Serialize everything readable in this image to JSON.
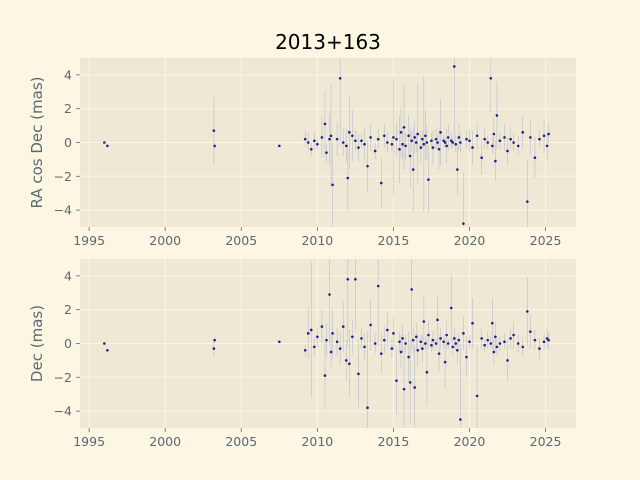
{
  "chart_data": [
    {
      "type": "scatter",
      "title": "2013+163",
      "xlabel": "",
      "ylabel": "RA cos Dec (mas)",
      "xlim": [
        1994.4,
        2027.0
      ],
      "ylim": [
        -5.0,
        5.0
      ],
      "xticks": [
        1995,
        2000,
        2005,
        2010,
        2015,
        2020,
        2025
      ],
      "yticks": [
        -4,
        -2,
        0,
        2,
        4
      ],
      "grid": true,
      "series": [
        {
          "x": [
            1996.0,
            1996.2,
            2003.2,
            2003.25,
            2007.5,
            2009.2,
            2009.4,
            2009.6,
            2009.8,
            2010.0,
            2010.3,
            2010.5,
            2010.6,
            2010.8,
            2010.9,
            2011.0,
            2011.3,
            2011.5,
            2011.7,
            2011.9,
            2012.0,
            2012.1,
            2012.3,
            2012.5,
            2012.7,
            2012.9,
            2013.1,
            2013.3,
            2013.5,
            2013.8,
            2014.0,
            2014.2,
            2014.4,
            2014.6,
            2014.9,
            2015.0,
            2015.2,
            2015.4,
            2015.5,
            2015.6,
            2015.7,
            2015.8,
            2016.0,
            2016.1,
            2016.2,
            2016.3,
            2016.4,
            2016.5,
            2016.6,
            2016.8,
            2016.9,
            2017.0,
            2017.1,
            2017.2,
            2017.3,
            2017.5,
            2017.6,
            2017.8,
            2017.9,
            2018.0,
            2018.1,
            2018.3,
            2018.4,
            2018.5,
            2018.6,
            2018.8,
            2018.9,
            2019.0,
            2019.1,
            2019.2,
            2019.3,
            2019.4,
            2019.6,
            2019.8,
            2020.0,
            2020.2,
            2020.5,
            2020.8,
            2021.0,
            2021.2,
            2021.4,
            2021.5,
            2021.6,
            2021.7,
            2021.8,
            2022.0,
            2022.3,
            2022.5,
            2022.7,
            2022.9,
            2023.2,
            2023.5,
            2023.8,
            2024.0,
            2024.3,
            2024.6,
            2024.9,
            2025.1,
            2025.2
          ],
          "y": [
            0.0,
            -0.2,
            0.7,
            -0.2,
            -0.2,
            0.2,
            0.0,
            -0.4,
            0.1,
            -0.1,
            0.3,
            1.1,
            -0.6,
            0.2,
            0.4,
            -2.5,
            0.2,
            3.8,
            0.0,
            -0.2,
            -2.1,
            0.6,
            0.4,
            0.1,
            -0.3,
            0.1,
            -0.1,
            -1.4,
            0.3,
            -0.5,
            0.2,
            -2.4,
            0.4,
            0.0,
            -0.1,
            0.3,
            0.2,
            -0.4,
            0.6,
            -0.1,
            0.9,
            -0.2,
            0.4,
            -0.8,
            0.1,
            -1.6,
            0.3,
            0.0,
            0.5,
            -0.3,
            0.2,
            -0.1,
            0.4,
            0.0,
            -2.2,
            0.1,
            -0.3,
            0.2,
            0.0,
            -0.4,
            0.6,
            0.1,
            0.0,
            -0.2,
            0.3,
            0.1,
            0.0,
            4.5,
            -0.1,
            -1.6,
            0.3,
            0.0,
            -4.8,
            0.2,
            0.1,
            -0.3,
            0.4,
            -0.9,
            0.2,
            0.0,
            3.8,
            -0.2,
            0.5,
            -1.1,
            1.6,
            0.1,
            0.3,
            -0.5,
            0.2,
            0.0,
            -0.2,
            0.6,
            -3.5,
            0.3,
            -0.9,
            0.2,
            0.4,
            -0.2,
            0.5
          ],
          "yerr": [
            0.0,
            0.0,
            2.0,
            0.2,
            0.0,
            0.5,
            0.6,
            0.4,
            0.5,
            0.3,
            1.2,
            2.0,
            0.6,
            1.5,
            3.0,
            2.5,
            1.0,
            4.0,
            0.8,
            1.0,
            2.0,
            2.2,
            1.5,
            0.6,
            0.8,
            0.4,
            1.0,
            1.5,
            0.8,
            0.5,
            0.6,
            1.5,
            0.7,
            0.6,
            0.4,
            3.5,
            1.0,
            2.0,
            1.5,
            1.0,
            2.5,
            0.8,
            1.2,
            1.8,
            0.6,
            2.5,
            1.0,
            0.6,
            3.0,
            1.0,
            0.5,
            4.0,
            1.5,
            1.0,
            2.0,
            0.5,
            1.0,
            0.6,
            0.4,
            1.2,
            2.0,
            0.4,
            0.3,
            1.0,
            0.8,
            0.5,
            0.3,
            4.5,
            0.5,
            1.5,
            0.8,
            0.6,
            3.0,
            0.5,
            0.7,
            1.0,
            0.8,
            1.0,
            0.6,
            0.4,
            2.0,
            0.5,
            1.0,
            1.2,
            2.0,
            0.5,
            0.8,
            0.8,
            0.6,
            0.5,
            0.6,
            1.0,
            2.5,
            1.0,
            1.2,
            0.5,
            1.0,
            0.8,
            0.6
          ]
        }
      ]
    },
    {
      "type": "scatter",
      "xlabel": "",
      "ylabel": "Dec (mas)",
      "xlim": [
        1994.4,
        2027.0
      ],
      "ylim": [
        -5.0,
        5.0
      ],
      "xticks": [
        1995,
        2000,
        2005,
        2010,
        2015,
        2020,
        2025
      ],
      "yticks": [
        -4,
        -2,
        0,
        2,
        4
      ],
      "grid": true,
      "series": [
        {
          "x": [
            1996.0,
            1996.2,
            2003.2,
            2003.25,
            2007.5,
            2009.2,
            2009.4,
            2009.6,
            2009.8,
            2010.0,
            2010.3,
            2010.5,
            2010.6,
            2010.8,
            2010.9,
            2011.0,
            2011.3,
            2011.5,
            2011.7,
            2011.9,
            2012.0,
            2012.1,
            2012.3,
            2012.5,
            2012.7,
            2012.9,
            2013.1,
            2013.3,
            2013.5,
            2013.8,
            2014.0,
            2014.2,
            2014.4,
            2014.6,
            2014.9,
            2015.0,
            2015.2,
            2015.4,
            2015.5,
            2015.6,
            2015.7,
            2015.8,
            2016.0,
            2016.1,
            2016.2,
            2016.3,
            2016.4,
            2016.5,
            2016.6,
            2016.8,
            2016.9,
            2017.0,
            2017.1,
            2017.2,
            2017.3,
            2017.5,
            2017.6,
            2017.8,
            2017.9,
            2018.0,
            2018.1,
            2018.3,
            2018.4,
            2018.5,
            2018.6,
            2018.8,
            2018.9,
            2019.0,
            2019.1,
            2019.2,
            2019.3,
            2019.4,
            2019.6,
            2019.8,
            2020.0,
            2020.2,
            2020.5,
            2020.8,
            2021.0,
            2021.2,
            2021.4,
            2021.5,
            2021.6,
            2021.7,
            2021.8,
            2022.0,
            2022.3,
            2022.5,
            2022.7,
            2022.9,
            2023.2,
            2023.5,
            2023.8,
            2024.0,
            2024.3,
            2024.6,
            2024.9,
            2025.1,
            2025.2
          ],
          "y": [
            0.0,
            -0.4,
            -0.3,
            0.2,
            0.1,
            -0.4,
            0.6,
            0.8,
            -0.2,
            0.4,
            1.0,
            -1.9,
            0.2,
            2.9,
            -0.5,
            0.6,
            0.1,
            -0.3,
            1.0,
            -1.0,
            3.8,
            -1.2,
            0.4,
            3.8,
            -1.8,
            0.3,
            -0.2,
            -3.8,
            1.1,
            0.0,
            3.4,
            -0.6,
            0.2,
            0.8,
            -0.3,
            0.6,
            -2.2,
            0.1,
            -0.5,
            0.3,
            -2.7,
            0.0,
            -0.8,
            -2.3,
            3.2,
            0.2,
            -2.6,
            0.4,
            -0.4,
            0.1,
            -0.3,
            1.3,
            0.0,
            -1.7,
            0.5,
            -0.1,
            0.2,
            0.0,
            1.4,
            -0.6,
            0.3,
            0.1,
            -1.1,
            0.5,
            0.0,
            2.1,
            -0.2,
            0.3,
            0.0,
            -0.4,
            0.2,
            -4.5,
            0.6,
            -0.8,
            0.1,
            1.2,
            -3.1,
            0.3,
            -0.1,
            0.2,
            0.0,
            1.2,
            -0.5,
            0.4,
            -0.2,
            0.0,
            0.1,
            -1.0,
            0.3,
            0.5,
            0.0,
            -0.2,
            1.9,
            0.7,
            0.2,
            -0.3,
            0.1,
            0.3,
            0.2
          ],
          "yerr": [
            0.0,
            0.0,
            0.5,
            0.2,
            0.0,
            0.4,
            1.5,
            4.0,
            0.5,
            0.6,
            1.0,
            2.0,
            1.0,
            3.0,
            1.0,
            1.5,
            0.8,
            1.0,
            1.5,
            1.2,
            4.0,
            2.0,
            1.0,
            3.0,
            2.0,
            0.6,
            0.8,
            4.5,
            1.5,
            0.6,
            3.5,
            1.2,
            0.8,
            1.0,
            0.6,
            1.0,
            2.0,
            0.6,
            1.0,
            0.8,
            2.5,
            0.5,
            1.5,
            2.5,
            3.5,
            0.8,
            2.5,
            0.8,
            1.0,
            0.4,
            0.8,
            1.5,
            0.4,
            2.0,
            0.8,
            0.4,
            0.6,
            0.3,
            1.5,
            1.0,
            0.6,
            0.4,
            1.5,
            0.8,
            0.3,
            2.0,
            0.5,
            0.6,
            0.4,
            0.8,
            0.4,
            4.5,
            1.0,
            1.2,
            0.4,
            1.5,
            3.0,
            0.6,
            0.4,
            0.5,
            0.4,
            1.5,
            0.8,
            0.8,
            0.5,
            0.4,
            0.5,
            1.2,
            0.6,
            0.8,
            0.5,
            0.5,
            2.0,
            1.0,
            0.6,
            0.6,
            0.5,
            0.6,
            0.5
          ]
        }
      ]
    }
  ]
}
